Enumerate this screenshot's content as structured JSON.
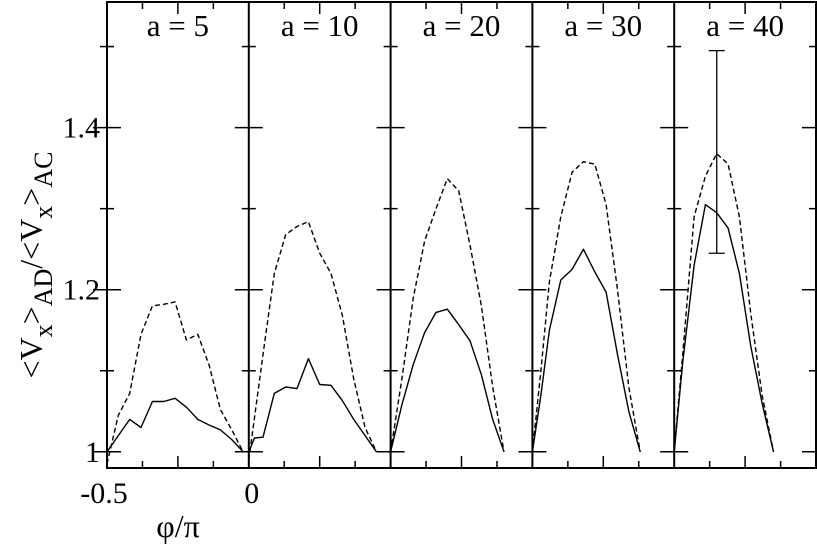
{
  "chart_data": {
    "type": "line",
    "ylabel": "<V_x>_AD/<V_x>_AC",
    "xlabel": "φ/π",
    "ylim": [
      0.98,
      1.555
    ],
    "ytick_values": [
      1,
      1.2,
      1.4
    ],
    "ytick_labels": [
      "1",
      "1.2",
      "1.4"
    ],
    "xtick_labels": [
      "-0.5",
      "0"
    ],
    "x_range_per_panel": [
      -0.5,
      0
    ],
    "grid": false,
    "legend": "none",
    "panels": [
      {
        "label": "a = 5",
        "series": [
          {
            "style": "solid",
            "points": [
              [
                -0.5,
                1.0
              ],
              [
                -0.46,
                1.02
              ],
              [
                -0.42,
                1.04
              ],
              [
                -0.38,
                1.03
              ],
              [
                -0.34,
                1.062
              ],
              [
                -0.3,
                1.062
              ],
              [
                -0.26,
                1.066
              ],
              [
                -0.22,
                1.055
              ],
              [
                -0.18,
                1.04
              ],
              [
                -0.14,
                1.033
              ],
              [
                -0.1,
                1.027
              ],
              [
                -0.06,
                1.015
              ],
              [
                -0.02,
                1.0
              ]
            ]
          },
          {
            "style": "dashed",
            "points": [
              [
                -0.5,
                0.985
              ],
              [
                -0.46,
                1.045
              ],
              [
                -0.42,
                1.072
              ],
              [
                -0.38,
                1.145
              ],
              [
                -0.34,
                1.18
              ],
              [
                -0.3,
                1.182
              ],
              [
                -0.26,
                1.185
              ],
              [
                -0.22,
                1.138
              ],
              [
                -0.18,
                1.145
              ],
              [
                -0.14,
                1.107
              ],
              [
                -0.1,
                1.052
              ],
              [
                -0.06,
                1.027
              ],
              [
                -0.02,
                1.0
              ]
            ]
          }
        ]
      },
      {
        "label": "a = 10",
        "series": [
          {
            "style": "solid",
            "points": [
              [
                -0.5,
                1.0
              ],
              [
                -0.48,
                1.017
              ],
              [
                -0.45,
                1.018
              ],
              [
                -0.41,
                1.072
              ],
              [
                -0.37,
                1.08
              ],
              [
                -0.33,
                1.078
              ],
              [
                -0.29,
                1.115
              ],
              [
                -0.25,
                1.083
              ],
              [
                -0.21,
                1.082
              ],
              [
                -0.17,
                1.063
              ],
              [
                -0.13,
                1.04
              ],
              [
                -0.09,
                1.02
              ],
              [
                -0.05,
                1.0
              ]
            ]
          },
          {
            "style": "dashed",
            "points": [
              [
                -0.5,
                0.99
              ],
              [
                -0.45,
                1.12
              ],
              [
                -0.41,
                1.22
              ],
              [
                -0.37,
                1.268
              ],
              [
                -0.33,
                1.278
              ],
              [
                -0.29,
                1.284
              ],
              [
                -0.25,
                1.245
              ],
              [
                -0.21,
                1.22
              ],
              [
                -0.17,
                1.168
              ],
              [
                -0.13,
                1.09
              ],
              [
                -0.09,
                1.03
              ],
              [
                -0.05,
                1.0
              ]
            ]
          }
        ]
      },
      {
        "label": "a = 20",
        "series": [
          {
            "style": "solid",
            "points": [
              [
                -0.5,
                1.0
              ],
              [
                -0.46,
                1.058
              ],
              [
                -0.42,
                1.108
              ],
              [
                -0.38,
                1.147
              ],
              [
                -0.34,
                1.172
              ],
              [
                -0.3,
                1.176
              ],
              [
                -0.26,
                1.157
              ],
              [
                -0.22,
                1.137
              ],
              [
                -0.18,
                1.095
              ],
              [
                -0.14,
                1.04
              ],
              [
                -0.1,
                1.0
              ]
            ]
          },
          {
            "style": "dashed",
            "points": [
              [
                -0.5,
                1.0
              ],
              [
                -0.46,
                1.09
              ],
              [
                -0.42,
                1.19
              ],
              [
                -0.38,
                1.26
              ],
              [
                -0.34,
                1.3
              ],
              [
                -0.3,
                1.337
              ],
              [
                -0.26,
                1.322
              ],
              [
                -0.22,
                1.255
              ],
              [
                -0.18,
                1.18
              ],
              [
                -0.14,
                1.08
              ],
              [
                -0.1,
                1.0
              ]
            ]
          }
        ]
      },
      {
        "label": "a = 30",
        "series": [
          {
            "style": "solid",
            "points": [
              [
                -0.5,
                1.0
              ],
              [
                -0.47,
                1.07
              ],
              [
                -0.44,
                1.15
              ],
              [
                -0.4,
                1.212
              ],
              [
                -0.36,
                1.225
              ],
              [
                -0.32,
                1.25
              ],
              [
                -0.28,
                1.222
              ],
              [
                -0.24,
                1.197
              ],
              [
                -0.2,
                1.12
              ],
              [
                -0.16,
                1.05
              ],
              [
                -0.12,
                1.0
              ]
            ]
          },
          {
            "style": "dashed",
            "points": [
              [
                -0.5,
                1.0
              ],
              [
                -0.47,
                1.1
              ],
              [
                -0.44,
                1.21
              ],
              [
                -0.4,
                1.29
              ],
              [
                -0.36,
                1.345
              ],
              [
                -0.32,
                1.358
              ],
              [
                -0.28,
                1.355
              ],
              [
                -0.24,
                1.305
              ],
              [
                -0.2,
                1.2
              ],
              [
                -0.16,
                1.08
              ],
              [
                -0.12,
                1.0
              ]
            ]
          }
        ]
      },
      {
        "label": "a = 40",
        "series": [
          {
            "style": "solid",
            "points": [
              [
                -0.5,
                1.0
              ],
              [
                -0.47,
                1.11
              ],
              [
                -0.43,
                1.23
              ],
              [
                -0.39,
                1.305
              ],
              [
                -0.35,
                1.295
              ],
              [
                -0.31,
                1.276
              ],
              [
                -0.27,
                1.22
              ],
              [
                -0.23,
                1.13
              ],
              [
                -0.19,
                1.06
              ],
              [
                -0.15,
                1.0
              ]
            ]
          },
          {
            "style": "dashed",
            "points": [
              [
                -0.5,
                1.0
              ],
              [
                -0.47,
                1.12
              ],
              [
                -0.43,
                1.29
              ],
              [
                -0.39,
                1.34
              ],
              [
                -0.35,
                1.368
              ],
              [
                -0.31,
                1.355
              ],
              [
                -0.27,
                1.29
              ],
              [
                -0.23,
                1.17
              ],
              [
                -0.19,
                1.07
              ],
              [
                -0.15,
                1.0
              ]
            ]
          }
        ],
        "errorbar": {
          "x": -0.35,
          "low": 1.245,
          "high": 1.495
        }
      }
    ]
  }
}
